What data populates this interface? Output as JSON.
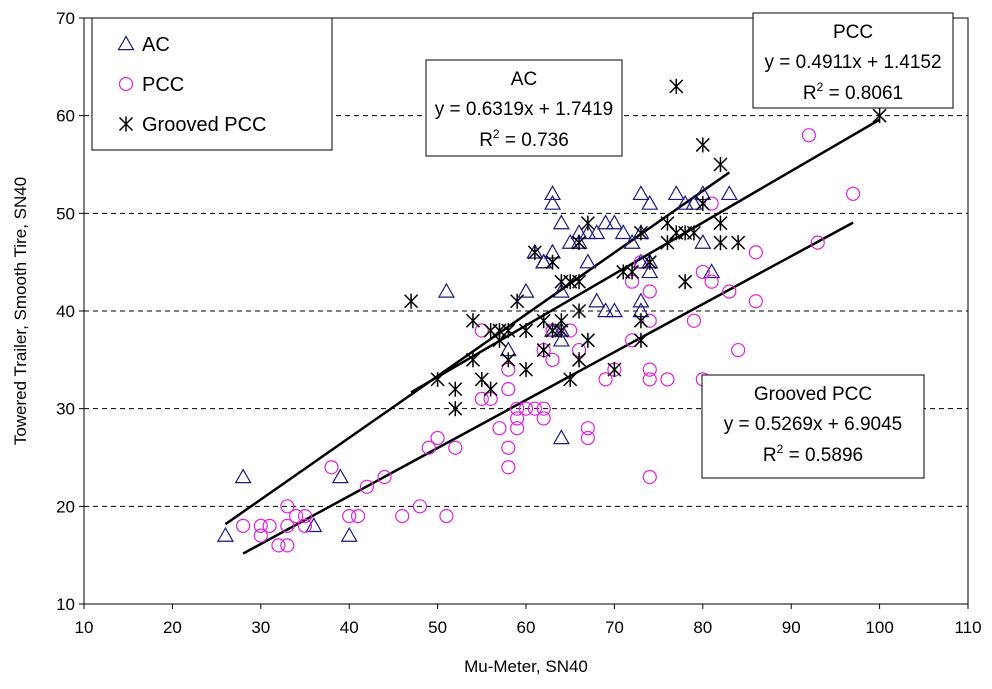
{
  "chart_data": {
    "type": "scatter",
    "title": "",
    "xlabel": "Mu-Meter, SN40",
    "ylabel": "Towered Trailer, Smooth Tire, SN40",
    "xlim": [
      10,
      110
    ],
    "ylim": [
      10,
      70
    ],
    "xticks": [
      "10",
      "20",
      "30",
      "40",
      "50",
      "60",
      "70",
      "80",
      "90",
      "100",
      "110"
    ],
    "yticks": [
      "10",
      "20",
      "30",
      "40",
      "50",
      "60",
      "70"
    ],
    "grid": "horizontal dashed",
    "legend_position": "top-left",
    "legend": [
      {
        "label": "AC",
        "marker": "triangle",
        "color": "#1a1a80"
      },
      {
        "label": "PCC",
        "marker": "circle",
        "color": "#e020e0"
      },
      {
        "label": "Grooved PCC",
        "marker": "star",
        "color": "#000000"
      }
    ],
    "series": [
      {
        "name": "AC",
        "marker": "triangle",
        "color": "#1a1a80",
        "points": [
          [
            26,
            17
          ],
          [
            28,
            23
          ],
          [
            36,
            18
          ],
          [
            39,
            23
          ],
          [
            40,
            17
          ],
          [
            51,
            42
          ],
          [
            58,
            36
          ],
          [
            60,
            42
          ],
          [
            61,
            46
          ],
          [
            62,
            45
          ],
          [
            62,
            45
          ],
          [
            63,
            52
          ],
          [
            63,
            51
          ],
          [
            63,
            46
          ],
          [
            63,
            38
          ],
          [
            64,
            49
          ],
          [
            64,
            42
          ],
          [
            64,
            38
          ],
          [
            64,
            37
          ],
          [
            64,
            27
          ],
          [
            65,
            47
          ],
          [
            66,
            48
          ],
          [
            66,
            47
          ],
          [
            67,
            45
          ],
          [
            67,
            48
          ],
          [
            68,
            41
          ],
          [
            68,
            48
          ],
          [
            69,
            49
          ],
          [
            69,
            40
          ],
          [
            70,
            49
          ],
          [
            70,
            40
          ],
          [
            71,
            48
          ],
          [
            72,
            47
          ],
          [
            73,
            52
          ],
          [
            73,
            48
          ],
          [
            73,
            45
          ],
          [
            73,
            41
          ],
          [
            73,
            40
          ],
          [
            74,
            51
          ],
          [
            74,
            45
          ],
          [
            74,
            44
          ],
          [
            77,
            52
          ],
          [
            78,
            51
          ],
          [
            79,
            51
          ],
          [
            80,
            52
          ],
          [
            80,
            47
          ],
          [
            81,
            44
          ],
          [
            83,
            52
          ]
        ]
      },
      {
        "name": "PCC",
        "marker": "circle",
        "color": "#e020e0",
        "points": [
          [
            28,
            18
          ],
          [
            30,
            18
          ],
          [
            30,
            17
          ],
          [
            31,
            18
          ],
          [
            32,
            16
          ],
          [
            33,
            16
          ],
          [
            33,
            18
          ],
          [
            33,
            20
          ],
          [
            34,
            19
          ],
          [
            35,
            18
          ],
          [
            35,
            19
          ],
          [
            38,
            24
          ],
          [
            40,
            19
          ],
          [
            41,
            19
          ],
          [
            42,
            22
          ],
          [
            44,
            23
          ],
          [
            46,
            19
          ],
          [
            48,
            20
          ],
          [
            49,
            26
          ],
          [
            50,
            27
          ],
          [
            51,
            19
          ],
          [
            52,
            26
          ],
          [
            55,
            31
          ],
          [
            55,
            38
          ],
          [
            56,
            31
          ],
          [
            57,
            28
          ],
          [
            58,
            24
          ],
          [
            58,
            26
          ],
          [
            58,
            32
          ],
          [
            58,
            34
          ],
          [
            59,
            28
          ],
          [
            59,
            29
          ],
          [
            59,
            30
          ],
          [
            60,
            30
          ],
          [
            61,
            30
          ],
          [
            62,
            29
          ],
          [
            62,
            30
          ],
          [
            62,
            36
          ],
          [
            63,
            35
          ],
          [
            63,
            38
          ],
          [
            65,
            38
          ],
          [
            66,
            36
          ],
          [
            67,
            27
          ],
          [
            67,
            28
          ],
          [
            69,
            33
          ],
          [
            70,
            34
          ],
          [
            72,
            37
          ],
          [
            72,
            43
          ],
          [
            73,
            45
          ],
          [
            74,
            23
          ],
          [
            74,
            33
          ],
          [
            74,
            34
          ],
          [
            74,
            39
          ],
          [
            74,
            42
          ],
          [
            76,
            33
          ],
          [
            79,
            39
          ],
          [
            80,
            33
          ],
          [
            80,
            44
          ],
          [
            81,
            43
          ],
          [
            81,
            51
          ],
          [
            83,
            42
          ],
          [
            84,
            36
          ],
          [
            86,
            41
          ],
          [
            86,
            46
          ],
          [
            92,
            58
          ],
          [
            93,
            47
          ],
          [
            97,
            52
          ]
        ]
      },
      {
        "name": "Grooved PCC",
        "marker": "star",
        "color": "#000000",
        "points": [
          [
            47,
            41
          ],
          [
            50,
            33
          ],
          [
            52,
            30
          ],
          [
            52,
            32
          ],
          [
            54,
            35
          ],
          [
            54,
            39
          ],
          [
            55,
            33
          ],
          [
            56,
            32
          ],
          [
            56,
            38
          ],
          [
            57,
            37
          ],
          [
            57,
            38
          ],
          [
            58,
            35
          ],
          [
            58,
            38
          ],
          [
            59,
            41
          ],
          [
            60,
            38
          ],
          [
            60,
            34
          ],
          [
            61,
            46
          ],
          [
            62,
            36
          ],
          [
            62,
            39
          ],
          [
            63,
            45
          ],
          [
            63,
            38
          ],
          [
            64,
            39
          ],
          [
            64,
            38
          ],
          [
            64,
            43
          ],
          [
            65,
            33
          ],
          [
            65,
            43
          ],
          [
            66,
            43
          ],
          [
            66,
            40
          ],
          [
            66,
            35
          ],
          [
            66,
            47
          ],
          [
            67,
            49
          ],
          [
            67,
            37
          ],
          [
            70,
            34
          ],
          [
            71,
            44
          ],
          [
            72,
            44
          ],
          [
            73,
            37
          ],
          [
            73,
            39
          ],
          [
            73,
            48
          ],
          [
            74,
            45
          ],
          [
            76,
            49
          ],
          [
            76,
            47
          ],
          [
            77,
            48
          ],
          [
            77,
            63
          ],
          [
            78,
            48
          ],
          [
            78,
            43
          ],
          [
            79,
            48
          ],
          [
            80,
            57
          ],
          [
            80,
            51
          ],
          [
            82,
            55
          ],
          [
            82,
            49
          ],
          [
            82,
            47
          ],
          [
            84,
            47
          ],
          [
            100,
            60
          ]
        ]
      }
    ],
    "trendlines": [
      {
        "series": "AC",
        "equation": "y = 0.6319x + 1.7419",
        "r2": "R² = 0.736",
        "slope": 0.6319,
        "intercept": 1.7419,
        "x_range": [
          26,
          83
        ]
      },
      {
        "series": "PCC",
        "equation": "y = 0.4911x + 1.4152",
        "r2": "R² = 0.8061",
        "slope": 0.4911,
        "intercept": 1.4152,
        "x_range": [
          28,
          97
        ]
      },
      {
        "series": "Grooved PCC",
        "equation": "y = 0.5269x + 6.9045",
        "r2": "R² = 0.5896",
        "slope": 0.5269,
        "intercept": 6.9045,
        "x_range": [
          47,
          100
        ]
      }
    ],
    "annotations": [
      {
        "title": "AC",
        "line1": "y = 0.6319x + 1.7419",
        "r2_label": "R",
        "r2_value": " = 0.736"
      },
      {
        "title": "PCC",
        "line1": "y = 0.4911x + 1.4152",
        "r2_label": "R",
        "r2_value": " = 0.8061"
      },
      {
        "title": "Grooved PCC",
        "line1": "y = 0.5269x + 6.9045",
        "r2_label": "R",
        "r2_value": " = 0.5896"
      }
    ]
  }
}
